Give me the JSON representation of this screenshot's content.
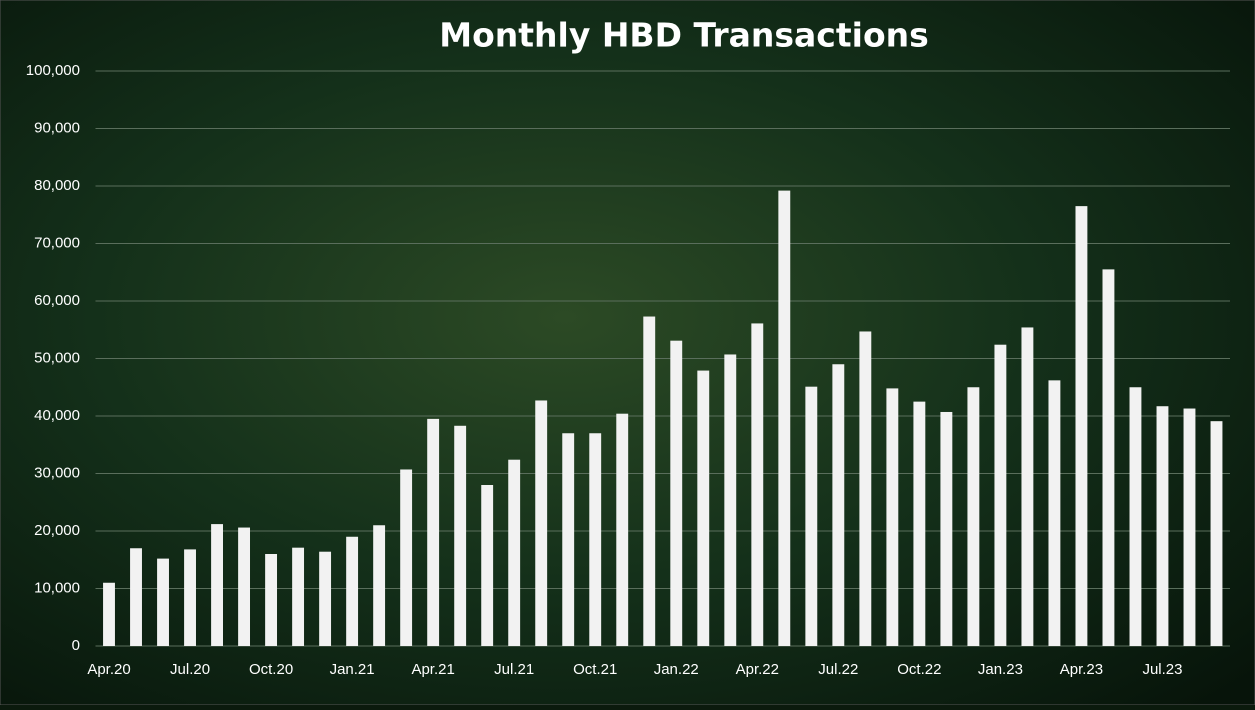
{
  "chart_data": {
    "type": "bar",
    "title": "Monthly HBD Transactions",
    "categories": [
      "Apr.20",
      null,
      null,
      "Jul.20",
      null,
      null,
      "Oct.20",
      null,
      null,
      "Jan.21",
      null,
      null,
      "Apr.21",
      null,
      null,
      "Jul.21",
      null,
      null,
      "Oct.21",
      null,
      null,
      "Jan.22",
      null,
      null,
      "Apr.22",
      null,
      null,
      "Jul.22",
      null,
      null,
      "Oct.22",
      null,
      null,
      "Jan.23",
      null,
      null,
      "Apr.23",
      null,
      null,
      "Jul.23",
      null,
      null
    ],
    "values": [
      11000,
      17000,
      15200,
      16800,
      21200,
      20600,
      16000,
      17100,
      16400,
      19000,
      21000,
      30700,
      39500,
      38300,
      28000,
      32400,
      42700,
      37000,
      37000,
      40400,
      57300,
      53100,
      47900,
      50700,
      56100,
      79200,
      45100,
      49000,
      54700,
      44800,
      42500,
      40700,
      45000,
      52400,
      55400,
      46200,
      76500,
      65500,
      45000,
      41700,
      41300,
      39100
    ],
    "color": "#f2f2f2",
    "ylim": [
      0,
      100000
    ],
    "yticks": [
      0,
      {
        "value": 10000,
        "label": "10,000"
      },
      {
        "value": 20000,
        "label": "20,000"
      },
      {
        "value": 30000,
        "label": "30,000"
      },
      {
        "value": 40000,
        "label": "40,000"
      },
      {
        "value": 50000,
        "label": "50,000"
      },
      {
        "value": 60000,
        "label": "60,000"
      },
      {
        "value": 70000,
        "label": "70,000"
      },
      {
        "value": 80000,
        "label": "80,000"
      },
      {
        "value": 90000,
        "label": "90,000"
      },
      {
        "value": 100000,
        "label": "100,000"
      }
    ],
    "grid": true
  }
}
